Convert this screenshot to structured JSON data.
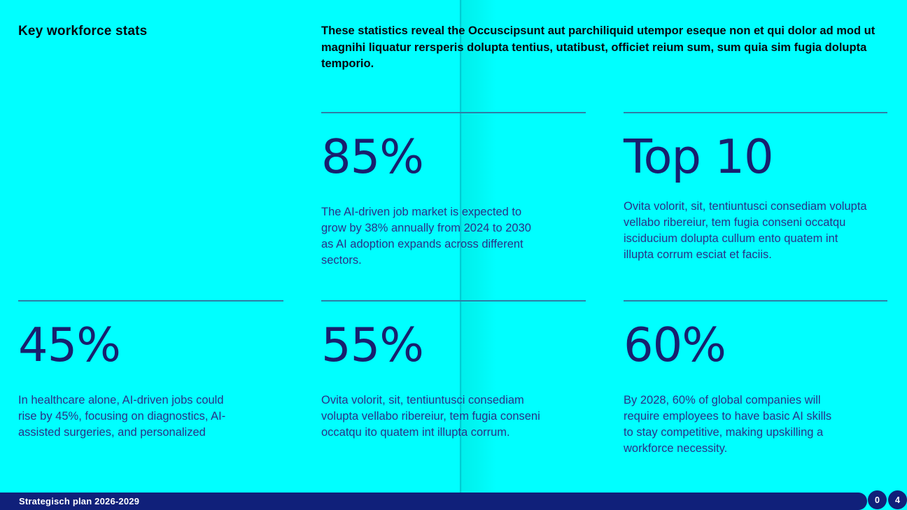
{
  "page": {
    "title": "Key workforce stats",
    "intro": "These statistics reveal the Occuscipsunt aut parchiliquid utempor eseque non et qui dolor ad mod ut magnihi liquatur rersperis dolupta tentius, utatibust, officiet reium sum, sum quia sim fugia dolupta temporio."
  },
  "stats": [
    {
      "value": "85%",
      "description": "The AI-driven job market is expected to grow by 38% annually from 2024 to 2030 as AI adoption expands across different sectors."
    },
    {
      "value": "Top 10",
      "description": "Ovita volorit, sit, tentiuntusci consediam volupta vellabo ribereiur, tem fugia conseni occatqu isciducium dolupta cullum ento quatem int illupta corrum esciat et faciis."
    },
    {
      "value": "45%",
      "description": "In healthcare alone, AI-driven jobs could rise by 45%, focusing on diagnostics, AI-assisted surgeries, and personalized"
    },
    {
      "value": "55%",
      "description": "Ovita volorit, sit, tentiuntusci consediam volupta vellabo ribereiur, tem fugia conseni occatqu ito quatem int illupta corrum."
    },
    {
      "value": "60%",
      "description": "By 2028, 60% of global companies will require employees to have basic AI skills to stay competitive, making upskilling a workforce necessity."
    }
  ],
  "footer": {
    "label": "Strategisch plan 2026-2029",
    "badges": [
      {
        "number": "0"
      },
      {
        "number": "4"
      }
    ]
  },
  "colors": {
    "background": "#00FFFF",
    "stat_number": "#181F6E",
    "body_text": "#2A3187",
    "divider": "#2E7EA6",
    "heading_text": "#07070F",
    "footer_bar": "#10207A",
    "footer_text": "#FFFFFF"
  }
}
